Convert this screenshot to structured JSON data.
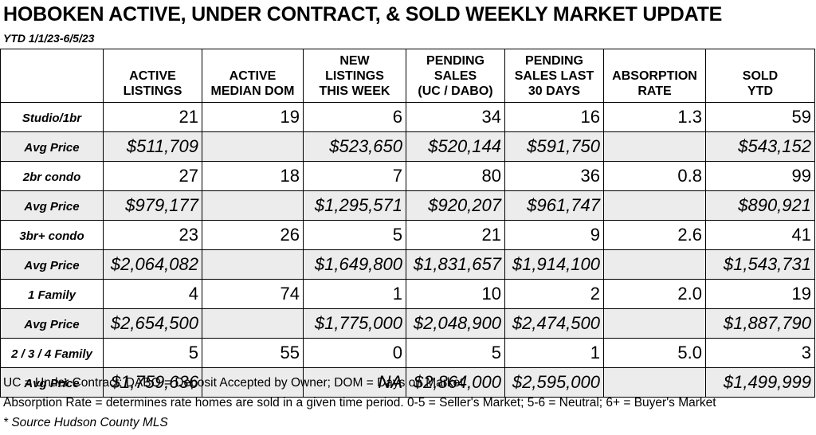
{
  "title": "HOBOKEN ACTIVE, UNDER CONTRACT, & SOLD WEEKLY MARKET UPDATE",
  "subtitle": "YTD 1/1/23-6/5/23",
  "columns": [
    {
      "line1": "",
      "line2": "ACTIVE",
      "line3": "LISTINGS"
    },
    {
      "line1": "",
      "line2": "ACTIVE",
      "line3": "MEDIAN DOM"
    },
    {
      "line1": "NEW",
      "line2": "LISTINGS",
      "line3": "THIS WEEK"
    },
    {
      "line1": "PENDING",
      "line2": "SALES",
      "line3": "(UC / DABO)"
    },
    {
      "line1": "PENDING",
      "line2": "SALES LAST",
      "line3": "30 DAYS"
    },
    {
      "line1": "",
      "line2": "ABSORPTION",
      "line3": "RATE"
    },
    {
      "line1": "",
      "line2": "SOLD",
      "line3": "YTD"
    }
  ],
  "rows": [
    {
      "label": "Studio/1br",
      "type": "count",
      "cells": [
        "21",
        "19",
        "6",
        "34",
        "16",
        "1.3",
        "59"
      ]
    },
    {
      "label": "Avg Price",
      "type": "avg",
      "cells": [
        "$511,709",
        "",
        "$523,650",
        "$520,144",
        "$591,750",
        "",
        "$543,152"
      ]
    },
    {
      "label": "2br condo",
      "type": "count",
      "cells": [
        "27",
        "18",
        "7",
        "80",
        "36",
        "0.8",
        "99"
      ]
    },
    {
      "label": "Avg Price",
      "type": "avg",
      "cells": [
        "$979,177",
        "",
        "$1,295,571",
        "$920,207",
        "$961,747",
        "",
        "$890,921"
      ]
    },
    {
      "label": "3br+ condo",
      "type": "count",
      "cells": [
        "23",
        "26",
        "5",
        "21",
        "9",
        "2.6",
        "41"
      ]
    },
    {
      "label": "Avg Price",
      "type": "avg",
      "cells": [
        "$2,064,082",
        "",
        "$1,649,800",
        "$1,831,657",
        "$1,914,100",
        "",
        "$1,543,731"
      ]
    },
    {
      "label": "1 Family",
      "type": "count",
      "cells": [
        "4",
        "74",
        "1",
        "10",
        "2",
        "2.0",
        "19"
      ]
    },
    {
      "label": "Avg Price",
      "type": "avg",
      "cells": [
        "$2,654,500",
        "",
        "$1,775,000",
        "$2,048,900",
        "$2,474,500",
        "",
        "$1,887,790"
      ]
    },
    {
      "label": "2 / 3 / 4 Family",
      "type": "count",
      "cells": [
        "5",
        "55",
        "0",
        "5",
        "1",
        "5.0",
        "3"
      ]
    },
    {
      "label": "Avg Price",
      "type": "avg",
      "cells": [
        "$1,759,636",
        "",
        "NA",
        "$2,864,000",
        "$2,595,000",
        "",
        "$1,499,999"
      ]
    }
  ],
  "notes": {
    "abbreviations": "UC = Under Contract; DABO = Deposit Accepted by Owner; DOM = Days on Market",
    "absorption": "Absorption Rate = determines rate homes are sold in a given time period.  0-5 = Seller's Market; 5-6 = Neutral; 6+ = Buyer's Market",
    "source": "* Source Hudson County MLS"
  }
}
